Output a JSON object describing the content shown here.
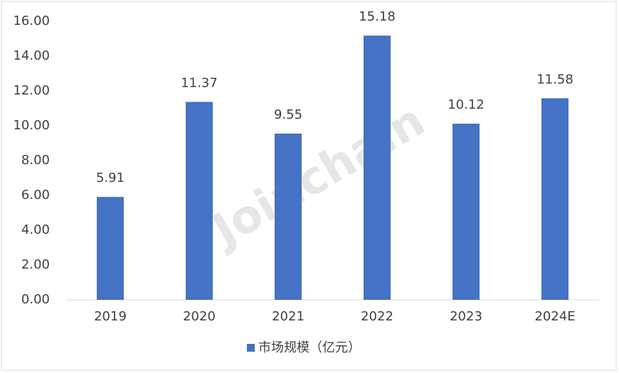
{
  "chart_data": {
    "type": "bar",
    "watermark": "Joinchain",
    "categories": [
      "2019",
      "2020",
      "2021",
      "2022",
      "2023",
      "2024E"
    ],
    "series": [
      {
        "name": "市场规模（亿元）",
        "color": "#4472c4",
        "values": [
          5.91,
          11.37,
          9.55,
          15.18,
          10.12,
          11.58
        ]
      }
    ],
    "ylim": [
      0,
      16
    ],
    "yticks": [
      {
        "value": 0,
        "label": "0.00"
      },
      {
        "value": 2,
        "label": "2.00"
      },
      {
        "value": 4,
        "label": "4.00"
      },
      {
        "value": 6,
        "label": "6.00"
      },
      {
        "value": 8,
        "label": "8.00"
      },
      {
        "value": 10,
        "label": "10.00"
      },
      {
        "value": 12,
        "label": "12.00"
      },
      {
        "value": 14,
        "label": "14.00"
      },
      {
        "value": 16,
        "label": "16.00"
      }
    ],
    "grid": false,
    "legend": "bottom"
  }
}
